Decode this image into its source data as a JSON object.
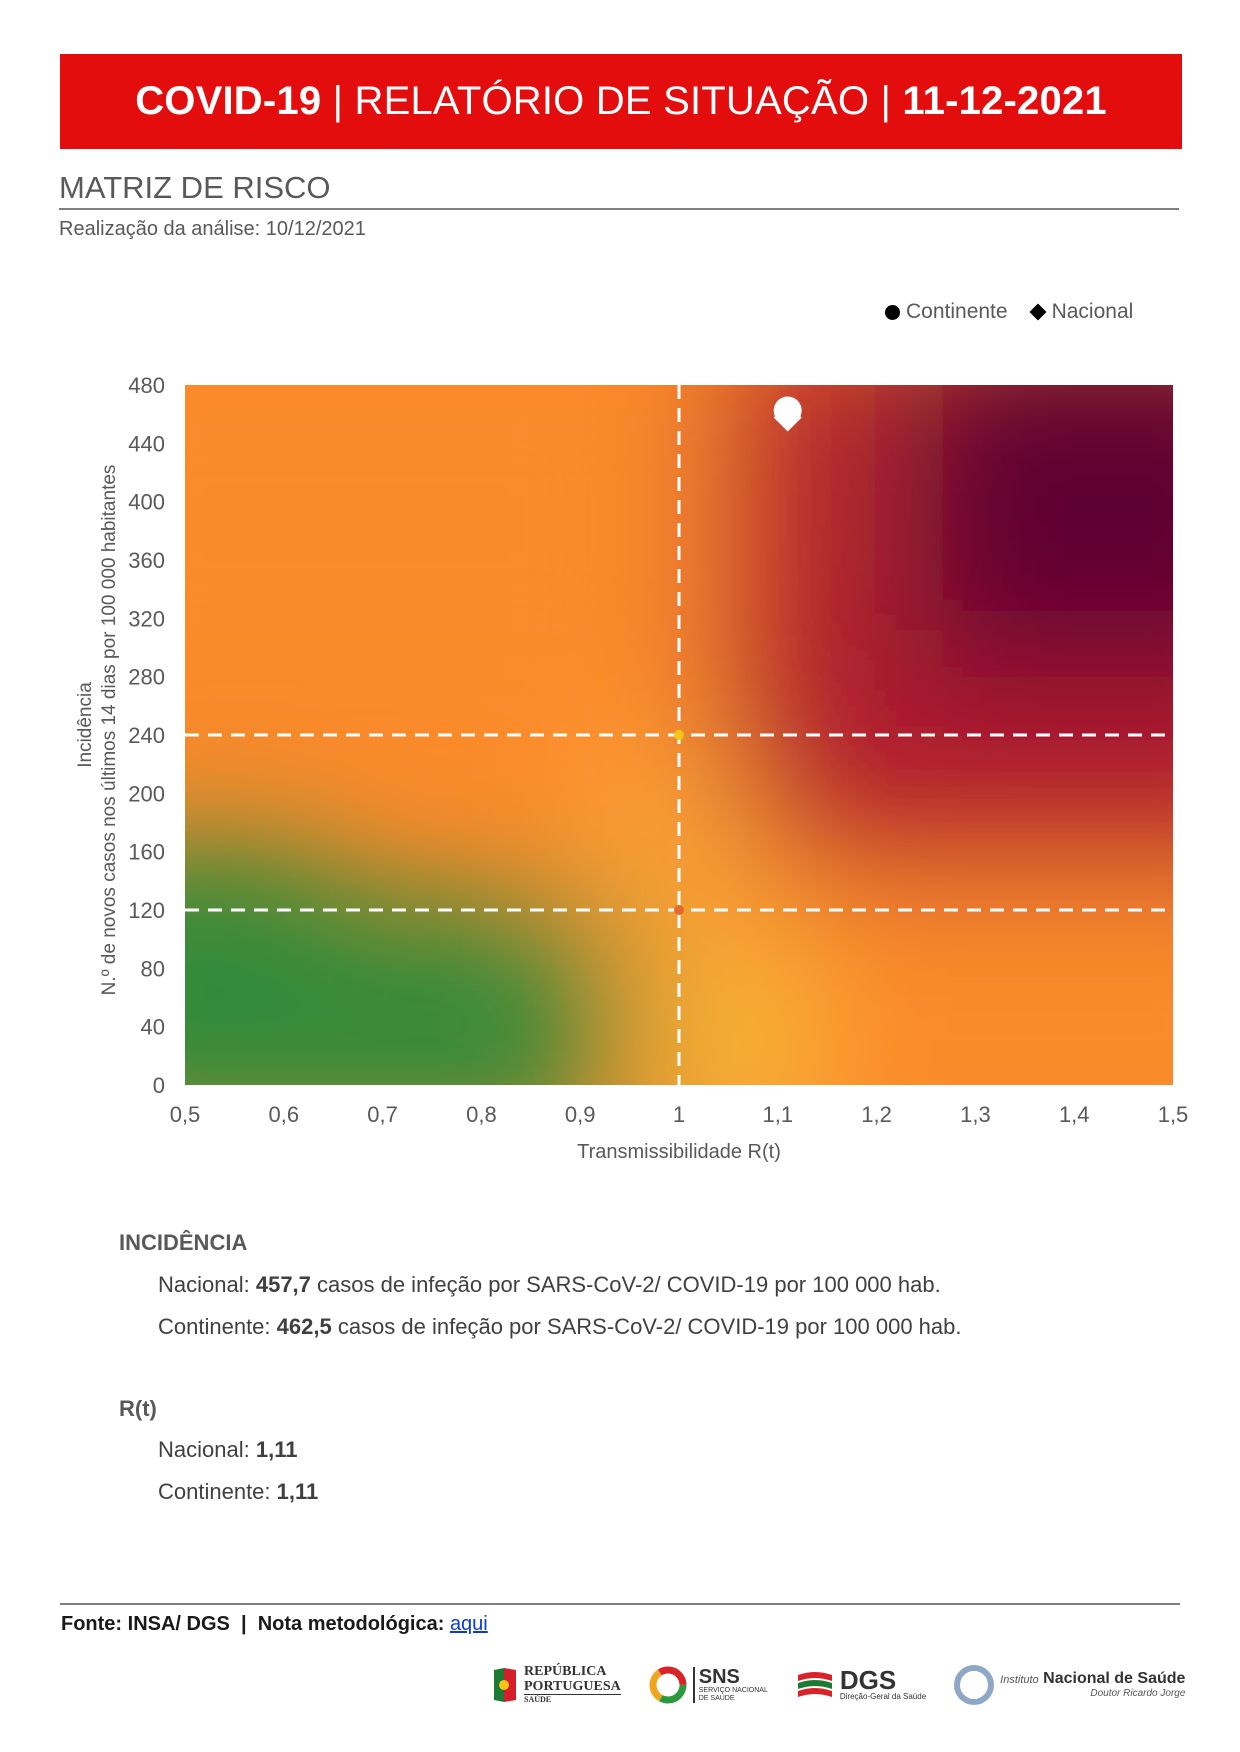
{
  "header": {
    "title_part1": "COVID-19",
    "title_part2": " | RELATÓRIO DE SITUAÇÃO | ",
    "title_date": "11-12-2021"
  },
  "section": {
    "title": "MATRIZ DE RISCO",
    "analysis_date": "Realização da análise: 10/12/2021"
  },
  "legend": {
    "continente": "Continente",
    "nacional": "Nacional"
  },
  "chart_data": {
    "type": "scatter",
    "background": "risk-matrix-gradient",
    "xlabel": "Transmissibilidade R(t)",
    "ylabel_line1": "Incidência",
    "ylabel_line2": "N.º de novos casos nos últimos 14 dias por 100 000 habitantes",
    "xlim": [
      0.5,
      1.5
    ],
    "ylim": [
      0,
      480
    ],
    "xticks": [
      "0,5",
      "0,6",
      "0,7",
      "0,8",
      "0,9",
      "1",
      "1,1",
      "1,2",
      "1,3",
      "1,4",
      "1,5"
    ],
    "yticks": [
      "0",
      "40",
      "80",
      "120",
      "160",
      "200",
      "240",
      "280",
      "320",
      "360",
      "400",
      "440",
      "480"
    ],
    "threshold_x": 1,
    "threshold_y": [
      120,
      240
    ],
    "series": [
      {
        "name": "Continente",
        "marker": "circle",
        "x": 1.11,
        "y": 462.5,
        "color": "#ffffff"
      },
      {
        "name": "Nacional",
        "marker": "diamond",
        "x": 1.11,
        "y": 457.7,
        "color": "#ffffff"
      }
    ],
    "colors": {
      "green": "#2e8b3a",
      "yellow": "#f2c43a",
      "orange": "#fb8a2a",
      "light_orange": "#ffab3a",
      "red": "#b21f2f",
      "dark": "#5e0033"
    }
  },
  "incidencia": {
    "heading": "INCIDÊNCIA",
    "nacional_label": "Nacional: ",
    "nacional_value": "457,7",
    "nacional_text": " casos de infeção por SARS-CoV-2/ COVID-19 por 100 000 hab.",
    "continente_label": "Continente: ",
    "continente_value": "462,5",
    "continente_text": " casos de infeção por SARS-CoV-2/ COVID-19 por 100 000 hab."
  },
  "rt": {
    "heading": "R(t)",
    "nacional_label": "Nacional: ",
    "nacional_value": "1,11",
    "continente_label": "Continente: ",
    "continente_value": "1,11"
  },
  "footer": {
    "source": "Fonte: INSA/ DGS  |  Nota metodológica: ",
    "link": "aqui"
  },
  "logos": {
    "republica_line1": "REPÚBLICA",
    "republica_line2": "PORTUGUESA",
    "republica_line3": "SAÚDE",
    "sns_title": "SNS",
    "sns_sub1": "SERVIÇO NACIONAL",
    "sns_sub2": "DE SAÚDE",
    "dgs_title": "DGS",
    "dgs_sub": "Direção-Geral da Saúde",
    "insa_prefix": "Instituto",
    "insa_title": "Nacional de Saúde",
    "insa_sub": "Doutor Ricardo Jorge"
  }
}
